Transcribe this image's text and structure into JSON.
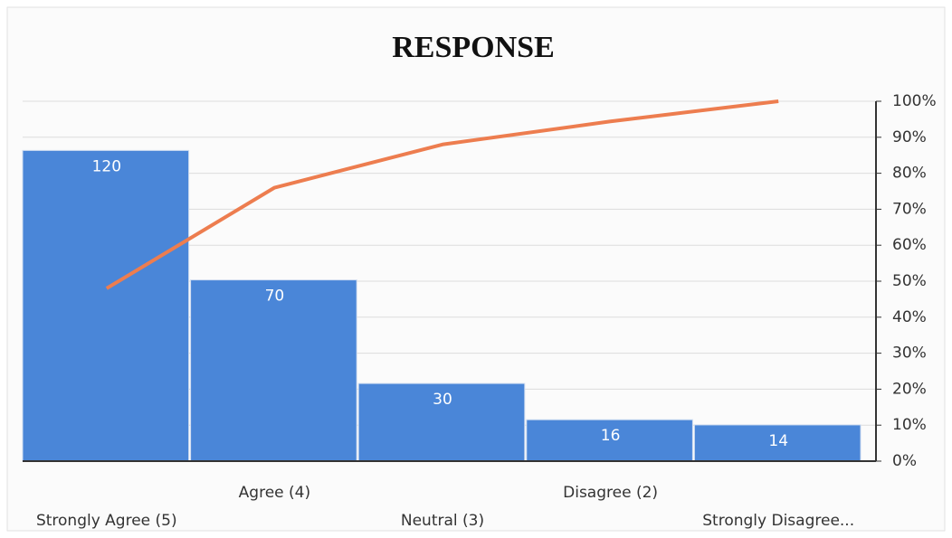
{
  "chart_data": {
    "type": "pareto",
    "title": "RESPONSE",
    "categories": [
      "Strongly Agree (5)",
      "Agree (4)",
      "Neutral (3)",
      "Disagree (2)",
      "Strongly Disagree..."
    ],
    "series": [
      {
        "type": "bar",
        "color": "#4a86d8",
        "values": [
          120,
          70,
          30,
          16,
          14
        ]
      },
      {
        "type": "line",
        "color": "#ed7d4f",
        "axis": "y2",
        "values": [
          48,
          76,
          88,
          94.4,
          100
        ]
      }
    ],
    "ylim": [
      0,
      139
    ],
    "y2lim": [
      0,
      100
    ],
    "y2ticks": [
      {
        "value": 0,
        "label": "0%"
      },
      {
        "value": 10,
        "label": "10%"
      },
      {
        "value": 20,
        "label": "20%"
      },
      {
        "value": 30,
        "label": "30%"
      },
      {
        "value": 40,
        "label": "40%"
      },
      {
        "value": 50,
        "label": "50%"
      },
      {
        "value": 60,
        "label": "60%"
      },
      {
        "value": 70,
        "label": "70%"
      },
      {
        "value": 80,
        "label": "80%"
      },
      {
        "value": 90,
        "label": "90%"
      },
      {
        "value": 100,
        "label": "100%"
      }
    ],
    "grid": true
  }
}
